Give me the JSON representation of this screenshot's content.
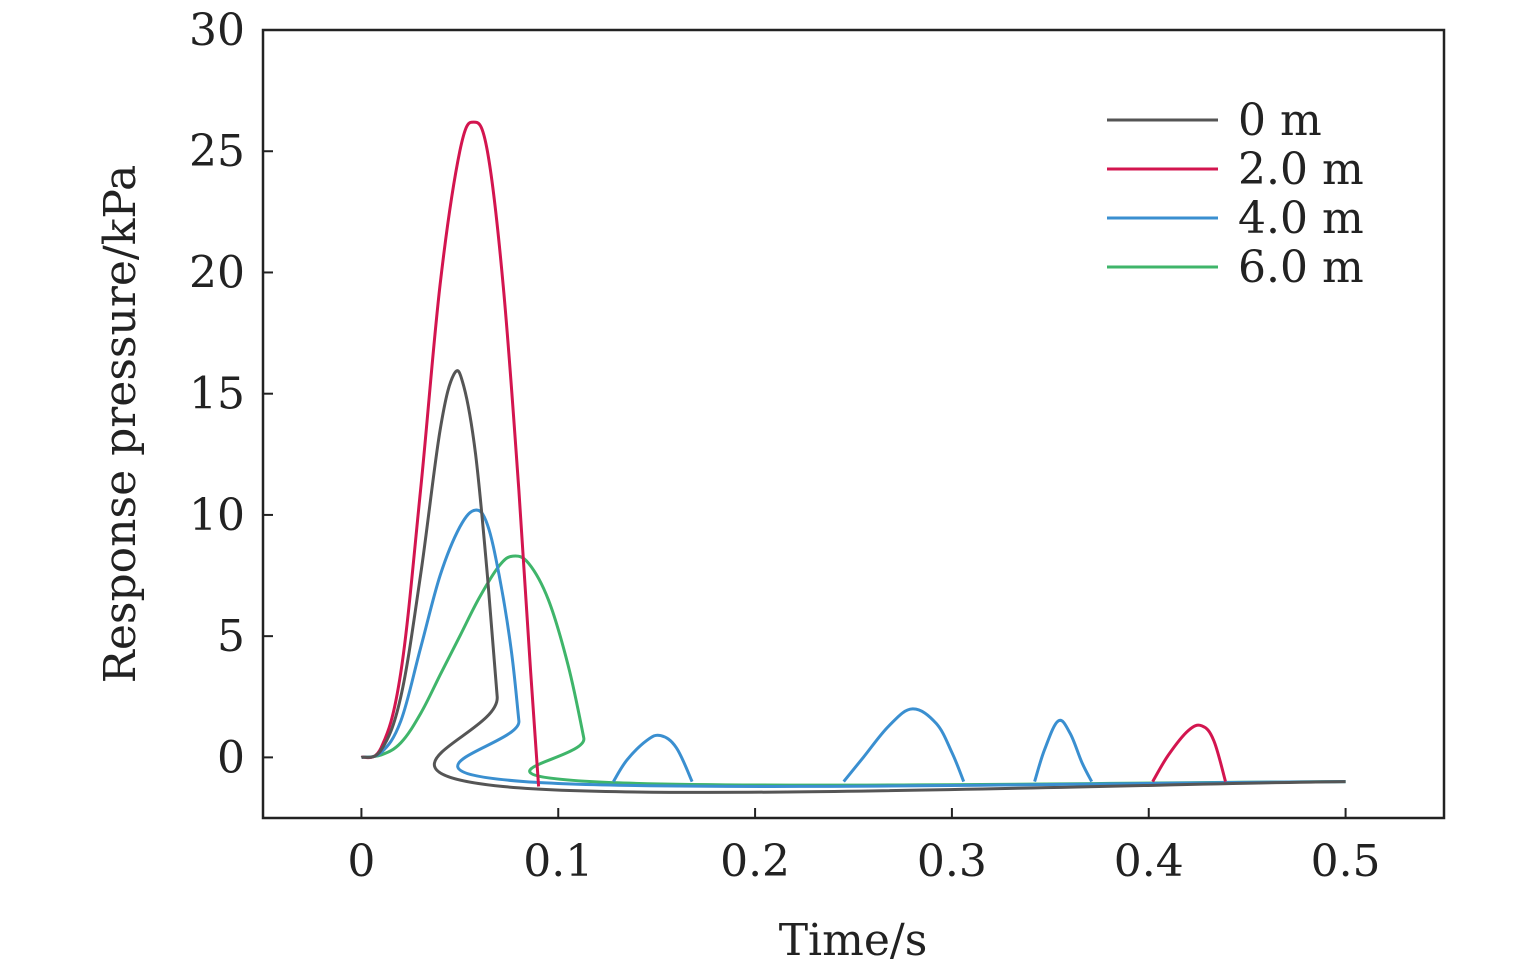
{
  "chart_data": {
    "type": "line",
    "title": "",
    "xlabel": "Time/s",
    "ylabel": "Response pressure/kPa",
    "xlim": [
      -0.05,
      0.55
    ],
    "ylim": [
      -2.5,
      30
    ],
    "x_ticks": [
      0,
      0.1,
      0.2,
      0.3,
      0.4,
      0.5
    ],
    "x_tick_labels": [
      "0",
      "0.1",
      "0.2",
      "0.3",
      "0.4",
      "0.5"
    ],
    "y_ticks": [
      0,
      5,
      10,
      15,
      20,
      25,
      30
    ],
    "y_tick_labels": [
      "0",
      "5",
      "10",
      "15",
      "20",
      "25",
      "30"
    ],
    "grid": false,
    "legend_position": "top-right",
    "series": [
      {
        "name": "0 m",
        "color": "#555555",
        "points": [
          [
            0,
            0
          ],
          [
            0.01,
            0.3
          ],
          [
            0.02,
            2.5
          ],
          [
            0.03,
            7.5
          ],
          [
            0.04,
            13.5
          ],
          [
            0.047,
            15.8
          ],
          [
            0.052,
            15.3
          ],
          [
            0.058,
            12.5
          ],
          [
            0.064,
            7.5
          ],
          [
            0.069,
            2.5
          ],
          [
            0.072,
            -1.2
          ],
          [
            0.5,
            -1
          ]
        ]
      },
      {
        "name": "2.0 m",
        "color": "#d3154f",
        "points": [
          [
            0,
            0
          ],
          [
            0.01,
            0.4
          ],
          [
            0.02,
            3.5
          ],
          [
            0.03,
            11
          ],
          [
            0.04,
            19.5
          ],
          [
            0.05,
            25
          ],
          [
            0.057,
            26.2
          ],
          [
            0.064,
            25
          ],
          [
            0.072,
            19.5
          ],
          [
            0.08,
            11
          ],
          [
            0.086,
            3.5
          ],
          [
            0.09,
            -1.2
          ]
        ]
      },
      {
        "name": "4.0 m",
        "color": "#3a8fd0",
        "points": [
          [
            0,
            0
          ],
          [
            0.01,
            0.2
          ],
          [
            0.02,
            1.5
          ],
          [
            0.03,
            4.5
          ],
          [
            0.04,
            7.5
          ],
          [
            0.05,
            9.5
          ],
          [
            0.058,
            10.2
          ],
          [
            0.064,
            9.6
          ],
          [
            0.07,
            7.5
          ],
          [
            0.076,
            4.5
          ],
          [
            0.08,
            1.5
          ],
          [
            0.083,
            -1
          ],
          [
            0.5,
            -1
          ]
        ]
      },
      {
        "name": "6.0 m",
        "color": "#3fb56a",
        "points": [
          [
            0,
            0
          ],
          [
            0.01,
            0.1
          ],
          [
            0.02,
            0.6
          ],
          [
            0.03,
            1.8
          ],
          [
            0.04,
            3.4
          ],
          [
            0.05,
            5
          ],
          [
            0.06,
            6.6
          ],
          [
            0.07,
            7.9
          ],
          [
            0.077,
            8.3
          ],
          [
            0.085,
            8
          ],
          [
            0.095,
            6.5
          ],
          [
            0.105,
            3.8
          ],
          [
            0.113,
            0.8
          ],
          [
            0.117,
            -1
          ],
          [
            0.5,
            -1
          ]
        ]
      }
    ],
    "secondary_pulses": [
      {
        "color": "#3a8fd0",
        "points": [
          [
            0.128,
            -1
          ],
          [
            0.135,
            -0.1
          ],
          [
            0.145,
            0.7
          ],
          [
            0.152,
            0.9
          ],
          [
            0.16,
            0.4
          ],
          [
            0.168,
            -1
          ]
        ]
      },
      {
        "color": "#3a8fd0",
        "points": [
          [
            0.245,
            -1
          ],
          [
            0.255,
            0
          ],
          [
            0.268,
            1.3
          ],
          [
            0.28,
            2
          ],
          [
            0.292,
            1.4
          ],
          [
            0.3,
            0.2
          ],
          [
            0.306,
            -1
          ]
        ]
      },
      {
        "color": "#3a8fd0",
        "points": [
          [
            0.342,
            -1
          ],
          [
            0.347,
            0.3
          ],
          [
            0.354,
            1.5
          ],
          [
            0.36,
            1
          ],
          [
            0.366,
            -0.2
          ],
          [
            0.371,
            -1
          ]
        ]
      },
      {
        "color": "#d3154f",
        "points": [
          [
            0.402,
            -1
          ],
          [
            0.41,
            0.1
          ],
          [
            0.42,
            1.1
          ],
          [
            0.427,
            1.3
          ],
          [
            0.433,
            0.7
          ],
          [
            0.439,
            -1
          ]
        ]
      }
    ]
  }
}
